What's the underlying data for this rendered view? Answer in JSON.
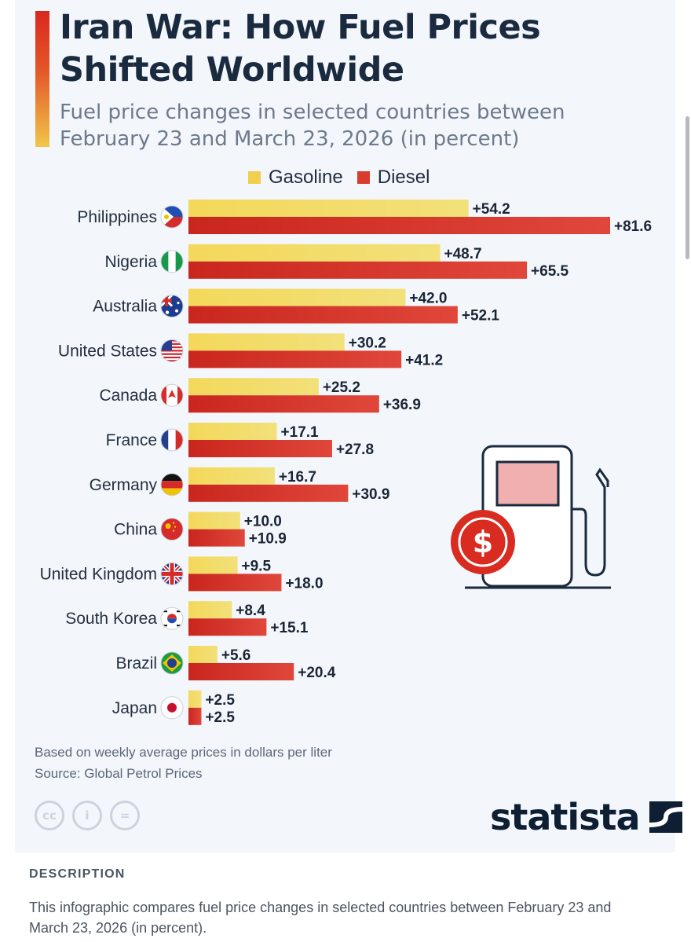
{
  "title_lines": [
    "Iran War: How Fuel Prices",
    "Shifted Worldwide"
  ],
  "subtitle_lines": [
    "Fuel price changes in selected countries between",
    "February 23 and March 23, 2026 (in percent)"
  ],
  "colors": {
    "gasoline": "#f0cf4f",
    "diesel": "#d93b2d",
    "title": "#1a2a3f",
    "accent_top": "#d9281f",
    "accent_bottom": "#f0c74a"
  },
  "chart_data": {
    "type": "bar",
    "orientation": "horizontal",
    "categories": [
      "Philippines",
      "Nigeria",
      "Australia",
      "United States",
      "Canada",
      "France",
      "Germany",
      "China",
      "United Kingdom",
      "South Korea",
      "Brazil",
      "Japan"
    ],
    "series": [
      {
        "name": "Gasoline",
        "values": [
          54.2,
          48.7,
          42.0,
          30.2,
          25.2,
          17.1,
          16.7,
          10.0,
          9.5,
          8.4,
          5.6,
          2.5
        ]
      },
      {
        "name": "Diesel",
        "values": [
          81.6,
          65.5,
          52.1,
          41.2,
          36.9,
          27.8,
          30.9,
          10.9,
          18.0,
          15.1,
          20.4,
          2.5
        ]
      }
    ],
    "data_labels": [
      [
        "+54.2",
        "+48.7",
        "+42.0",
        "+30.2",
        "+25.2",
        "+17.1",
        "+16.7",
        "+10.0",
        "+9.5",
        "+8.4",
        "+5.6",
        "+2.5"
      ],
      [
        "+81.6",
        "+65.5",
        "+52.1",
        "+41.2",
        "+36.9",
        "+27.8",
        "+30.9",
        "+10.9",
        "+18.0",
        "+15.1",
        "+20.4",
        "+2.5"
      ]
    ],
    "flag_icons": [
      "philippines-flag-icon",
      "nigeria-flag-icon",
      "australia-flag-icon",
      "usa-flag-icon",
      "canada-flag-icon",
      "france-flag-icon",
      "germany-flag-icon",
      "china-flag-icon",
      "uk-flag-icon",
      "south-korea-flag-icon",
      "brazil-flag-icon",
      "japan-flag-icon"
    ],
    "xlim": [
      0,
      81.6
    ],
    "grid": false,
    "legend_position": "top"
  },
  "illustration_icon": "fuel-pump-dollar-icon",
  "notes": [
    "Based on weekly average prices in dollars per liter",
    "Source: Global Petrol Prices"
  ],
  "license_icons": [
    "cc-icon",
    "attribution-icon",
    "no-derivatives-icon"
  ],
  "license_glyphs": [
    "cc",
    "i",
    "="
  ],
  "brand": "statista",
  "description": {
    "heading": "DESCRIPTION",
    "text": "This infographic compares fuel price changes in selected countries between February 23 and March 23, 2026 (in percent)."
  }
}
